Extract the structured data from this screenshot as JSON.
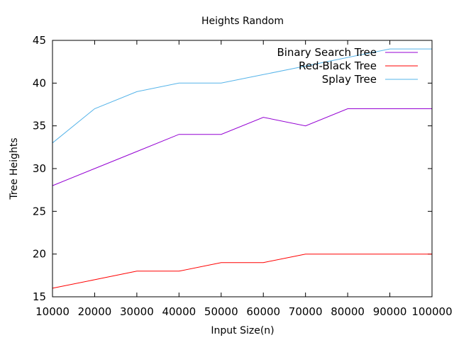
{
  "chart_data": {
    "type": "line",
    "title": "Heights Random",
    "xlabel": "Input Size(n)",
    "ylabel": "Tree Heights",
    "x": [
      10000,
      20000,
      30000,
      40000,
      50000,
      60000,
      70000,
      80000,
      90000,
      100000
    ],
    "xlim": [
      10000,
      100000
    ],
    "ylim": [
      15,
      45
    ],
    "xticks": [
      10000,
      20000,
      30000,
      40000,
      50000,
      60000,
      70000,
      80000,
      90000,
      100000
    ],
    "yticks": [
      15,
      20,
      25,
      30,
      35,
      40,
      45
    ],
    "grid": false,
    "legend_position": "top-right",
    "series": [
      {
        "name": "Binary Search Tree",
        "color": "#9400d3",
        "values": [
          28,
          30,
          32,
          34,
          34,
          36,
          35,
          37,
          37,
          37
        ]
      },
      {
        "name": "Red-Black Tree",
        "color": "#ff0000",
        "values": [
          16,
          17,
          18,
          18,
          19,
          19,
          20,
          20,
          20,
          20
        ]
      },
      {
        "name": "Splay Tree",
        "color": "#56b4e9",
        "values": [
          33,
          37,
          39,
          40,
          40,
          41,
          42,
          43,
          44,
          44
        ]
      }
    ]
  }
}
